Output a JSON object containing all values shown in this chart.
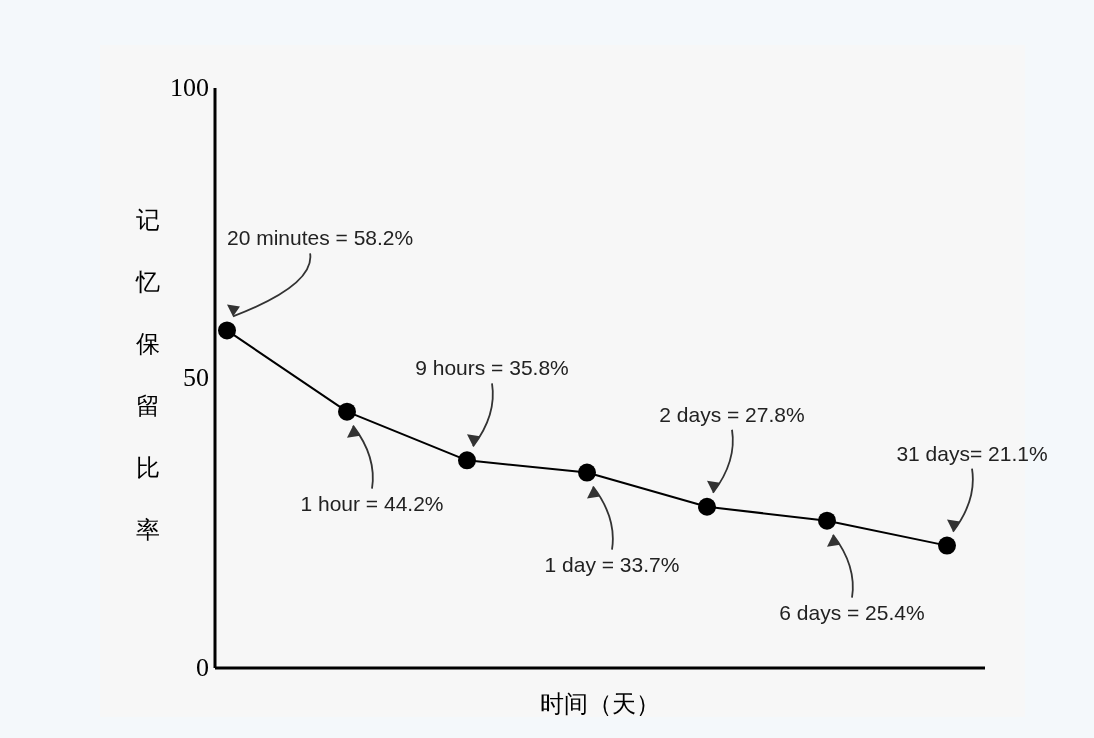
{
  "chart_data": {
    "type": "line",
    "ylabel": "记忆保留比率",
    "xlabel": "时间（天）",
    "categories": [
      null,
      null,
      null,
      null,
      null,
      null,
      null
    ],
    "series": [
      {
        "color": "#000000",
        "values": [
          58.2,
          44.2,
          35.8,
          33.7,
          27.8,
          25.4,
          21.1
        ]
      }
    ],
    "ylim": [
      0,
      100
    ],
    "yticks": [
      0,
      50,
      100
    ],
    "marker": "circle",
    "line_style": "solid",
    "annotations": [
      "20 minutes = 58.2%",
      "1 hour = 44.2%",
      "9 hours = 35.8%",
      "1 day = 33.7%",
      "2 days = 27.8%",
      "6 days = 25.4%",
      "31 days= 21.1%"
    ]
  }
}
